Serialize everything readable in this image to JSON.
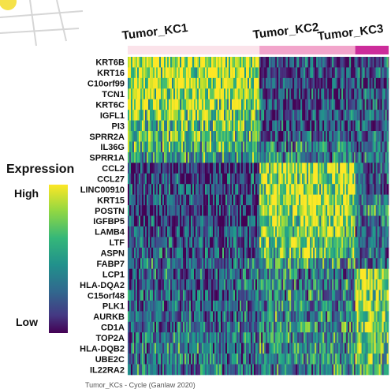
{
  "legend": {
    "title": "Expression",
    "high_label": "High",
    "low_label": "Low"
  },
  "caption": "Tumor_KCs - Cycle (Ganlaw 2020)",
  "colors": {
    "group_kc1": "#fbe3ea",
    "group_kc2": "#f2a5cb",
    "group_kc3": "#cc2c9a",
    "viridis_high": "#fde725",
    "viridis_mid": "#21918c",
    "viridis_low": "#440154"
  },
  "chart_data": {
    "type": "heatmap",
    "title": "",
    "xlabel": "",
    "ylabel": "",
    "color_scale": "viridis",
    "groups": [
      {
        "name": "Tumor_KC1",
        "fraction": 0.505
      },
      {
        "name": "Tumor_KC2",
        "fraction": 0.367
      },
      {
        "name": "Tumor_KC3",
        "fraction": 0.128
      }
    ],
    "genes": [
      "KRT6B",
      "KRT16",
      "C10orf99",
      "TCN1",
      "KRT6C",
      "IGFL1",
      "PI3",
      "SPRR2A",
      "IL36G",
      "SPRR1A",
      "CCL2",
      "CCL27",
      "LINC00910",
      "KRT15",
      "POSTN",
      "IGFBP5",
      "LAMB4",
      "LTF",
      "ASPN",
      "FABP7",
      "LCP1",
      "HLA-DQA2",
      "C15orf48",
      "PLK1",
      "AURKB",
      "CD1A",
      "TOP2A",
      "HLA-DQB2",
      "UBE2C",
      "IL22RA2"
    ],
    "mean_expression": [
      [
        0.9,
        0.18,
        0.28
      ],
      [
        0.88,
        0.2,
        0.3
      ],
      [
        0.86,
        0.22,
        0.22
      ],
      [
        0.85,
        0.2,
        0.3
      ],
      [
        0.82,
        0.22,
        0.25
      ],
      [
        0.78,
        0.25,
        0.3
      ],
      [
        0.72,
        0.25,
        0.25
      ],
      [
        0.7,
        0.28,
        0.25
      ],
      [
        0.62,
        0.38,
        0.35
      ],
      [
        0.5,
        0.45,
        0.4
      ],
      [
        0.15,
        0.88,
        0.3
      ],
      [
        0.18,
        0.86,
        0.28
      ],
      [
        0.22,
        0.85,
        0.15
      ],
      [
        0.2,
        0.88,
        0.45
      ],
      [
        0.18,
        0.86,
        0.55
      ],
      [
        0.2,
        0.82,
        0.4
      ],
      [
        0.22,
        0.8,
        0.3
      ],
      [
        0.25,
        0.78,
        0.35
      ],
      [
        0.28,
        0.72,
        0.3
      ],
      [
        0.35,
        0.55,
        0.3
      ],
      [
        0.3,
        0.4,
        0.9
      ],
      [
        0.28,
        0.42,
        0.88
      ],
      [
        0.3,
        0.4,
        0.86
      ],
      [
        0.32,
        0.45,
        0.85
      ],
      [
        0.35,
        0.45,
        0.82
      ],
      [
        0.38,
        0.48,
        0.78
      ],
      [
        0.4,
        0.5,
        0.75
      ],
      [
        0.4,
        0.48,
        0.7
      ],
      [
        0.4,
        0.5,
        0.68
      ],
      [
        0.38,
        0.45,
        0.62
      ]
    ]
  }
}
